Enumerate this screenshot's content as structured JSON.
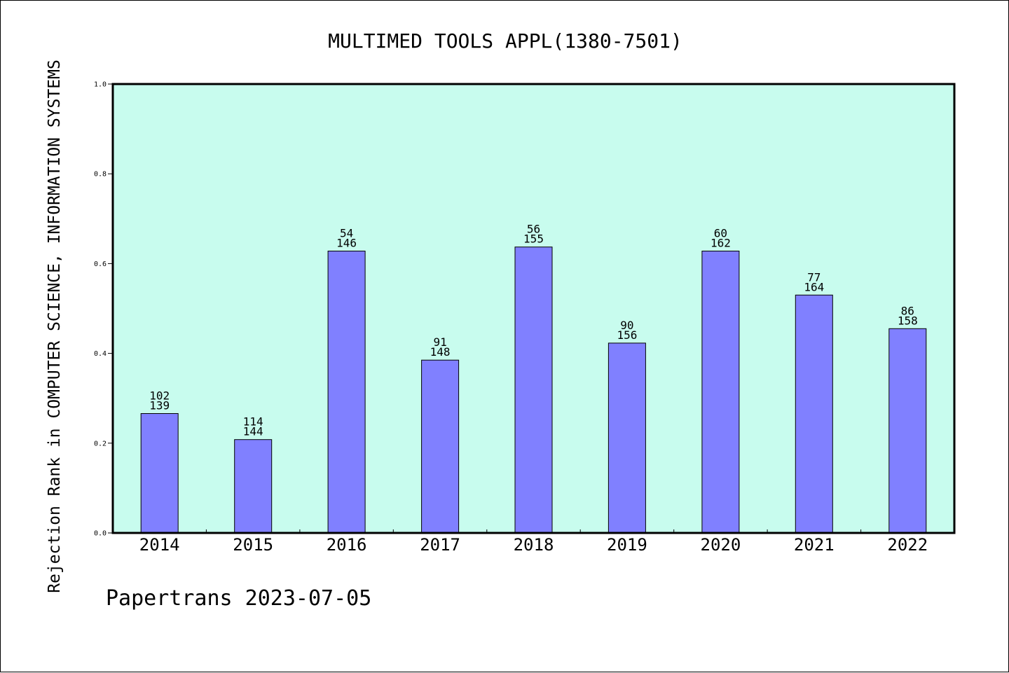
{
  "chart_data": {
    "type": "bar",
    "title": "MULTIMED TOOLS APPL(1380-7501)",
    "xlabel": "",
    "ylabel": "Rejection Rank in COMPUTER SCIENCE, INFORMATION SYSTEMS",
    "ylim": [
      0,
      1.0
    ],
    "yticks": [
      "0.0",
      "0.2",
      "0.4",
      "0.6",
      "0.8",
      "1.0"
    ],
    "categories": [
      "2014",
      "2015",
      "2016",
      "2017",
      "2018",
      "2019",
      "2020",
      "2021",
      "2022"
    ],
    "values": [
      0.266,
      0.208,
      0.628,
      0.385,
      0.637,
      0.423,
      0.628,
      0.53,
      0.455
    ],
    "rank_labels": [
      "102",
      "114",
      "54",
      "91",
      "56",
      "90",
      "60",
      "77",
      "86"
    ],
    "total_labels": [
      "139",
      "144",
      "146",
      "148",
      "155",
      "156",
      "162",
      "164",
      "158"
    ],
    "grid": false,
    "legend": "none",
    "colors": {
      "plot_background": "#c8fcee",
      "bar_fill": "#8080ff",
      "bar_stroke": "#000000"
    }
  },
  "footer": {
    "text": "Papertrans 2023-07-05"
  }
}
